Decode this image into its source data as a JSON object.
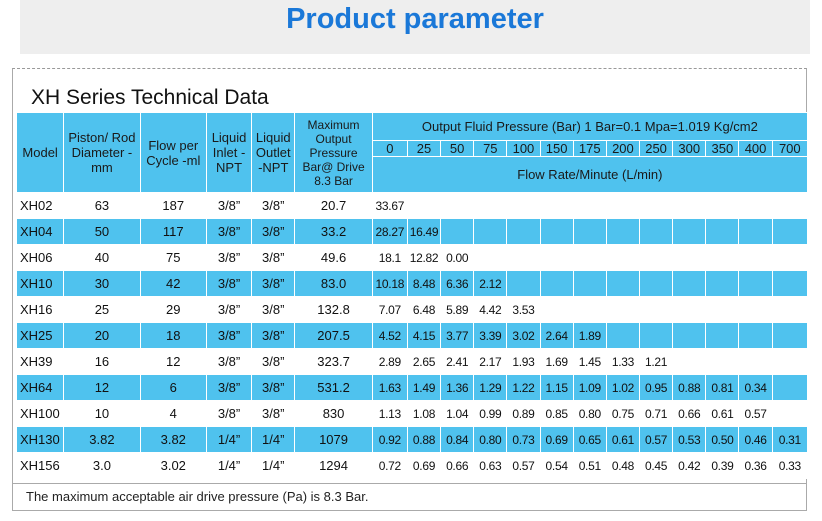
{
  "banner": {
    "title": "Product parameter"
  },
  "series_title": "XH  Series Technical Data",
  "headers": {
    "model": "Model",
    "piston": "Piston/ Rod Diameter -mm",
    "flow": "Flow per Cycle -ml",
    "inlet": "Liquid Inlet -NPT",
    "outlet": "Liquid Outlet -NPT",
    "max_pressure": "Maximum Output Pressure Bar@ Drive 8.3 Bar",
    "output_fluid": "Output Fluid Pressure (Bar)    1 Bar=0.1 Mpa=1.019 Kg/cm2",
    "flow_rate": "Flow Rate/Minute (L/min)",
    "pressures": [
      "0",
      "25",
      "50",
      "75",
      "100",
      "150",
      "175",
      "200",
      "250",
      "300",
      "350",
      "400",
      "700"
    ]
  },
  "rows": [
    {
      "model": "XH02",
      "piston": "63",
      "flow": "187",
      "inlet": "3/8”",
      "outlet": "3/8”",
      "max": "20.7",
      "rates": [
        "33.67",
        "",
        "",
        "",
        "",
        "",
        "",
        "",
        "",
        "",
        "",
        "",
        ""
      ]
    },
    {
      "model": "XH04",
      "piston": "50",
      "flow": "117",
      "inlet": "3/8”",
      "outlet": "3/8”",
      "max": "33.2",
      "rates": [
        "28.27",
        "16.49",
        "",
        "",
        "",
        "",
        "",
        "",
        "",
        "",
        "",
        "",
        ""
      ]
    },
    {
      "model": "XH06",
      "piston": "40",
      "flow": "75",
      "inlet": "3/8”",
      "outlet": "3/8”",
      "max": "49.6",
      "rates": [
        "18.1",
        "12.82",
        "0.00",
        "",
        "",
        "",
        "",
        "",
        "",
        "",
        "",
        "",
        ""
      ]
    },
    {
      "model": "XH10",
      "piston": "30",
      "flow": "42",
      "inlet": "3/8”",
      "outlet": "3/8”",
      "max": "83.0",
      "rates": [
        "10.18",
        "8.48",
        "6.36",
        "2.12",
        "",
        "",
        "",
        "",
        "",
        "",
        "",
        "",
        ""
      ]
    },
    {
      "model": "XH16",
      "piston": "25",
      "flow": "29",
      "inlet": "3/8”",
      "outlet": "3/8”",
      "max": "132.8",
      "rates": [
        "7.07",
        "6.48",
        "5.89",
        "4.42",
        "3.53",
        "",
        "",
        "",
        "",
        "",
        "",
        "",
        ""
      ]
    },
    {
      "model": "XH25",
      "piston": "20",
      "flow": "18",
      "inlet": "3/8”",
      "outlet": "3/8”",
      "max": "207.5",
      "rates": [
        "4.52",
        "4.15",
        "3.77",
        "3.39",
        "3.02",
        "2.64",
        "1.89",
        "",
        "",
        "",
        "",
        "",
        ""
      ]
    },
    {
      "model": "XH39",
      "piston": "16",
      "flow": "12",
      "inlet": "3/8”",
      "outlet": "3/8”",
      "max": "323.7",
      "rates": [
        "2.89",
        "2.65",
        "2.41",
        "2.17",
        "1.93",
        "1.69",
        "1.45",
        "1.33",
        "1.21",
        "",
        "",
        "",
        ""
      ]
    },
    {
      "model": "XH64",
      "piston": "12",
      "flow": "6",
      "inlet": "3/8”",
      "outlet": "3/8”",
      "max": "531.2",
      "rates": [
        "1.63",
        "1.49",
        "1.36",
        "1.29",
        "1.22",
        "1.15",
        "1.09",
        "1.02",
        "0.95",
        "0.88",
        "0.81",
        "0.34",
        ""
      ]
    },
    {
      "model": "XH100",
      "piston": "10",
      "flow": "4",
      "inlet": "3/8”",
      "outlet": "3/8”",
      "max": "830",
      "rates": [
        "1.13",
        "1.08",
        "1.04",
        "0.99",
        "0.89",
        "0.85",
        "0.80",
        "0.75",
        "0.71",
        "0.66",
        "0.61",
        "0.57",
        ""
      ]
    },
    {
      "model": "XH130",
      "piston": "3.82",
      "flow": "3.82",
      "inlet": "1/4”",
      "outlet": "1/4”",
      "max": "1079",
      "rates": [
        "0.92",
        "0.88",
        "0.84",
        "0.80",
        "0.73",
        "0.69",
        "0.65",
        "0.61",
        "0.57",
        "0.53",
        "0.50",
        "0.46",
        "0.31"
      ]
    },
    {
      "model": "XH156",
      "piston": "3.0",
      "flow": "3.02",
      "inlet": "1/4”",
      "outlet": "1/4”",
      "max": "1294",
      "rates": [
        "0.72",
        "0.69",
        "0.66",
        "0.63",
        "0.57",
        "0.54",
        "0.51",
        "0.48",
        "0.45",
        "0.42",
        "0.39",
        "0.36",
        "0.33"
      ]
    }
  ],
  "footer": "The maximum acceptable air drive pressure (Pa) is 8.3 Bar.",
  "colors": {
    "header_blue": "#4fc2ee",
    "title_blue": "#1a78d8"
  }
}
